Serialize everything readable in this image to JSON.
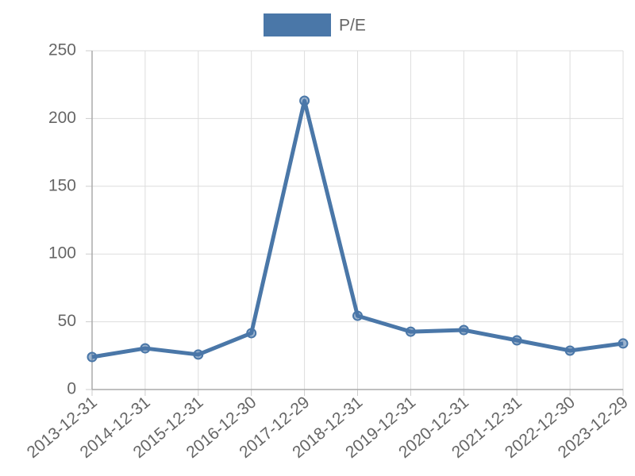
{
  "chart_data": {
    "type": "line",
    "categories": [
      "2013-12-31",
      "2014-12-31",
      "2015-12-31",
      "2016-12-30",
      "2017-12-29",
      "2018-12-31",
      "2019-12-31",
      "2020-12-31",
      "2021-12-31",
      "2022-12-30",
      "2023-12-29"
    ],
    "series": [
      {
        "name": "P/E",
        "color": "#4a77a8",
        "values": [
          24.0,
          30.4,
          25.8,
          41.6,
          213.1,
          54.4,
          42.7,
          43.9,
          36.3,
          28.7,
          34.0
        ]
      }
    ],
    "ylim": [
      0,
      250
    ],
    "yticks": [
      0,
      50,
      100,
      150,
      200,
      250
    ],
    "grid": true,
    "legend": "top"
  }
}
